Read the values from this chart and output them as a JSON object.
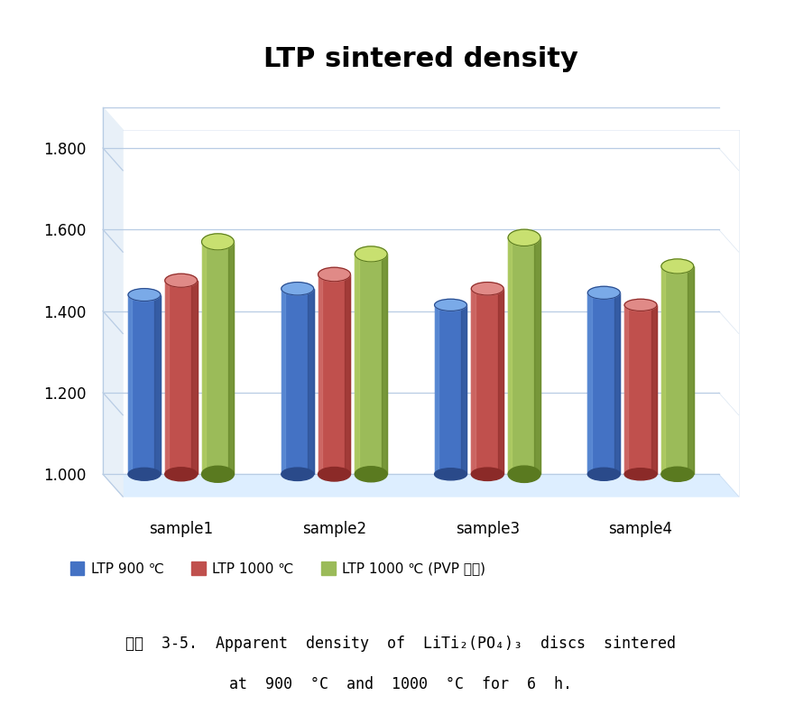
{
  "title": "LTP sintered density",
  "categories": [
    "sample1",
    "sample2",
    "sample3",
    "sample4"
  ],
  "series": [
    {
      "label": "LTP 900 ℃",
      "values": [
        1.44,
        1.455,
        1.415,
        1.445
      ],
      "color": "#4472C4",
      "dark_color": "#2A4A8A",
      "top_color": "#7AAAE8"
    },
    {
      "label": "LTP 1000 ℃",
      "values": [
        1.475,
        1.49,
        1.455,
        1.415
      ],
      "color": "#C0504D",
      "dark_color": "#8B2A28",
      "top_color": "#E08A87"
    },
    {
      "label": "LTP 1000 ℃ (PVP 첨가)",
      "values": [
        1.57,
        1.54,
        1.58,
        1.51
      ],
      "color": "#9BBB59",
      "dark_color": "#5A7A20",
      "top_color": "#C8E070"
    }
  ],
  "ylim": [
    1.0,
    1.9
  ],
  "yticks": [
    1.0,
    1.2,
    1.4,
    1.6,
    1.8
  ],
  "background_color": "#FFFFFF",
  "grid_color": "#B8CCE4",
  "floor_color": "#DDEEFF",
  "floor_edge_color": "#AABBCC",
  "wall_color": "#E8F0F8",
  "caption_line1": "그림  3-5.  Apparent  density  of  LiTi₂(PO₄)₃  discs  sintered",
  "caption_line2": "at  900  °C  and  1000  °C  for  6  h.",
  "title_fontsize": 22,
  "axis_fontsize": 12,
  "legend_fontsize": 11,
  "caption_fontsize": 12
}
